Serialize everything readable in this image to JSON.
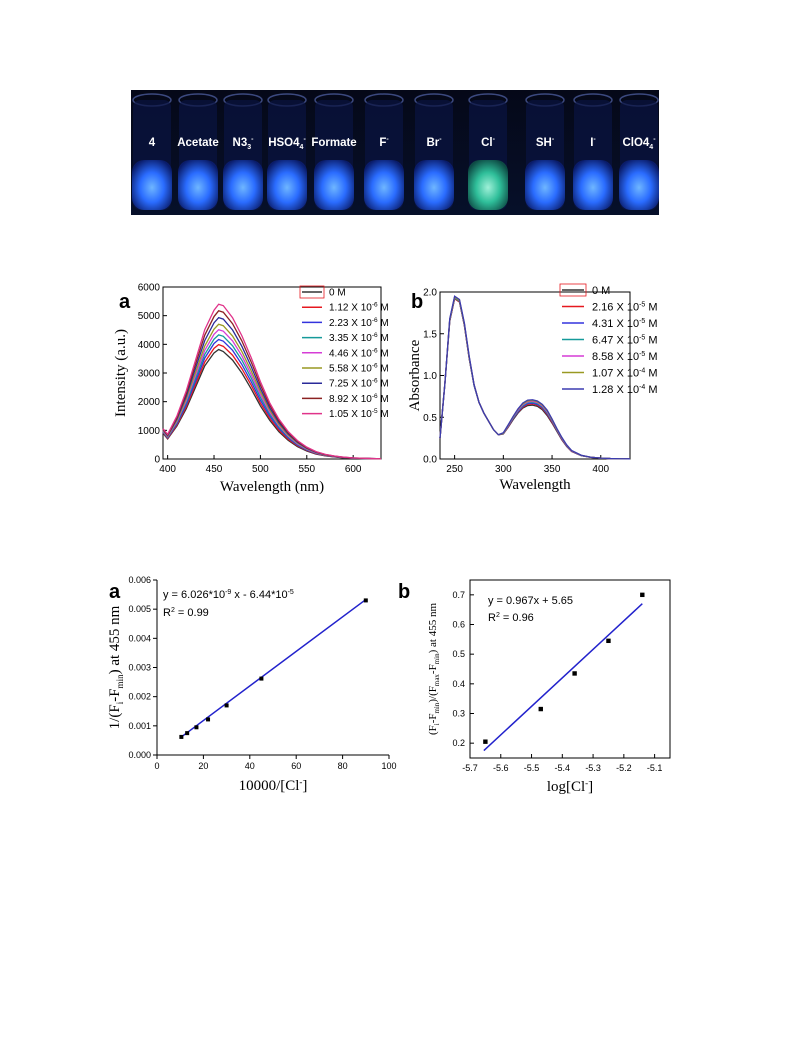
{
  "photo": {
    "labels": [
      "4",
      "Acetate",
      "N3",
      "HSO4",
      "Formate",
      "F",
      "Br",
      "Cl",
      "SH",
      "I",
      "ClO4"
    ],
    "label_sup": [
      "",
      "",
      "-",
      "-",
      "",
      "-",
      "-",
      "-",
      "-",
      "-",
      "-"
    ],
    "label_sub": [
      "",
      "",
      "3",
      "4",
      "",
      "",
      "",
      "",
      "",
      "",
      "4"
    ]
  },
  "chart_data": [
    {
      "panel_label": "a",
      "type": "line",
      "xlabel": "Wavelength (nm)",
      "ylabel": "Intensity (a.u.)",
      "xlim": [
        395,
        630
      ],
      "ylim": [
        0,
        6000
      ],
      "xticks": [
        400,
        450,
        500,
        550,
        600
      ],
      "yticks": [
        0,
        1000,
        2000,
        3000,
        4000,
        5000,
        6000
      ],
      "peak_x": 457,
      "x": [
        395,
        400,
        410,
        420,
        430,
        440,
        450,
        455,
        460,
        470,
        480,
        490,
        500,
        510,
        520,
        530,
        540,
        550,
        560,
        570,
        580,
        590,
        600,
        610,
        620,
        630
      ],
      "legend_position": "right",
      "series": [
        {
          "name": "0 M",
          "unit": "",
          "color": "#333333",
          "values": [
            900,
            700,
            1150,
            1750,
            2500,
            3250,
            3700,
            3820,
            3750,
            3450,
            3000,
            2450,
            1850,
            1350,
            950,
            650,
            430,
            280,
            170,
            110,
            70,
            40,
            25,
            15,
            10,
            5
          ]
        },
        {
          "name": "1.12 X 10",
          "unit": "-6",
          "color": "#e6181f",
          "values": [
            920,
            720,
            1190,
            1820,
            2600,
            3380,
            3860,
            3990,
            3930,
            3620,
            3150,
            2580,
            1950,
            1420,
            1000,
            690,
            460,
            300,
            185,
            115,
            75,
            45,
            28,
            18,
            12,
            6
          ]
        },
        {
          "name": "2.23 X 10",
          "unit": "-6",
          "color": "#3333dd",
          "values": [
            940,
            740,
            1230,
            1890,
            2700,
            3520,
            4030,
            4170,
            4110,
            3790,
            3300,
            2700,
            2050,
            1500,
            1060,
            730,
            485,
            315,
            195,
            122,
            80,
            48,
            30,
            19,
            12,
            6
          ]
        },
        {
          "name": "3.35 X 10",
          "unit": "-6",
          "color": "#159a9a",
          "values": [
            960,
            760,
            1270,
            1960,
            2800,
            3650,
            4180,
            4330,
            4280,
            3950,
            3450,
            2830,
            2150,
            1570,
            1110,
            765,
            510,
            330,
            205,
            128,
            84,
            50,
            32,
            20,
            13,
            7
          ]
        },
        {
          "name": "4.46 X 10",
          "unit": "-6",
          "color": "#d63cd6",
          "values": [
            980,
            780,
            1310,
            2030,
            2910,
            3790,
            4350,
            4510,
            4460,
            4120,
            3600,
            2950,
            2250,
            1640,
            1160,
            800,
            535,
            345,
            215,
            135,
            88,
            53,
            33,
            21,
            14,
            7
          ]
        },
        {
          "name": "5.58 X 10",
          "unit": "-6",
          "color": "#999922",
          "values": [
            1000,
            800,
            1350,
            2100,
            3020,
            3940,
            4530,
            4700,
            4650,
            4290,
            3750,
            3080,
            2350,
            1710,
            1210,
            835,
            560,
            360,
            225,
            141,
            92,
            55,
            35,
            22,
            14,
            7
          ]
        },
        {
          "name": "7.25 X 10",
          "unit": "-6",
          "color": "#2a2a99",
          "values": [
            1020,
            820,
            1400,
            2190,
            3160,
            4130,
            4750,
            4930,
            4880,
            4500,
            3930,
            3230,
            2460,
            1790,
            1270,
            875,
            585,
            378,
            236,
            148,
            96,
            58,
            36,
            23,
            15,
            8
          ]
        },
        {
          "name": "8.92 X 10",
          "unit": "-6",
          "color": "#8b2222",
          "values": [
            1040,
            840,
            1450,
            2280,
            3300,
            4320,
            4970,
            5170,
            5120,
            4720,
            4120,
            3390,
            2580,
            1880,
            1330,
            915,
            612,
            396,
            247,
            155,
            100,
            60,
            38,
            24,
            15,
            8
          ]
        },
        {
          "name": "1.05 X 10",
          "unit": "-5",
          "color": "#e0338a",
          "values": [
            1060,
            860,
            1500,
            2370,
            3440,
            4510,
            5190,
            5400,
            5350,
            4930,
            4300,
            3540,
            2700,
            1960,
            1390,
            955,
            640,
            414,
            258,
            162,
            104,
            63,
            40,
            25,
            16,
            8
          ]
        }
      ]
    },
    {
      "panel_label": "b",
      "type": "line",
      "xlabel": "Wavelength",
      "ylabel": "Absorbance",
      "xlim": [
        235,
        430
      ],
      "ylim": [
        0.0,
        2.0
      ],
      "xticks": [
        250,
        300,
        350,
        400
      ],
      "yticks": [
        0.0,
        0.5,
        1.0,
        1.5,
        2.0
      ],
      "x": [
        235,
        240,
        245,
        250,
        255,
        260,
        265,
        270,
        275,
        280,
        285,
        290,
        295,
        300,
        305,
        310,
        315,
        320,
        325,
        330,
        335,
        340,
        345,
        350,
        355,
        360,
        365,
        370,
        380,
        390,
        400,
        410,
        420,
        430
      ],
      "legend_position": "right",
      "series": [
        {
          "name": "0 M",
          "unit": "",
          "color": "#333333",
          "values": [
            0.25,
            0.9,
            1.65,
            1.92,
            1.88,
            1.6,
            1.2,
            0.88,
            0.68,
            0.55,
            0.45,
            0.35,
            0.29,
            0.3,
            0.38,
            0.47,
            0.55,
            0.61,
            0.64,
            0.645,
            0.63,
            0.59,
            0.52,
            0.43,
            0.33,
            0.23,
            0.15,
            0.09,
            0.04,
            0.02,
            0.01,
            0.005,
            0.003,
            0.002
          ]
        },
        {
          "name": "2.16 X 10",
          "unit": "-5",
          "color": "#e6181f",
          "values": [
            0.25,
            0.9,
            1.65,
            1.92,
            1.88,
            1.6,
            1.2,
            0.88,
            0.68,
            0.55,
            0.45,
            0.35,
            0.29,
            0.3,
            0.385,
            0.48,
            0.56,
            0.62,
            0.655,
            0.66,
            0.645,
            0.605,
            0.535,
            0.44,
            0.34,
            0.235,
            0.155,
            0.092,
            0.04,
            0.02,
            0.01,
            0.005,
            0.003,
            0.002
          ]
        },
        {
          "name": "4.31 X 10",
          "unit": "-5",
          "color": "#3333dd",
          "values": [
            0.25,
            0.9,
            1.66,
            1.93,
            1.89,
            1.61,
            1.21,
            0.88,
            0.68,
            0.55,
            0.45,
            0.35,
            0.29,
            0.305,
            0.39,
            0.485,
            0.565,
            0.63,
            0.665,
            0.67,
            0.655,
            0.615,
            0.545,
            0.45,
            0.345,
            0.24,
            0.158,
            0.094,
            0.041,
            0.02,
            0.01,
            0.005,
            0.003,
            0.002
          ]
        },
        {
          "name": "6.47 X 10",
          "unit": "-5",
          "color": "#159a9a",
          "values": [
            0.25,
            0.9,
            1.66,
            1.93,
            1.89,
            1.61,
            1.21,
            0.88,
            0.68,
            0.55,
            0.45,
            0.35,
            0.29,
            0.305,
            0.395,
            0.49,
            0.575,
            0.64,
            0.675,
            0.68,
            0.665,
            0.625,
            0.555,
            0.46,
            0.35,
            0.245,
            0.16,
            0.096,
            0.042,
            0.02,
            0.01,
            0.005,
            0.003,
            0.002
          ]
        },
        {
          "name": "8.58 X 10",
          "unit": "-5",
          "color": "#d63cd6",
          "values": [
            0.25,
            0.9,
            1.67,
            1.94,
            1.9,
            1.62,
            1.22,
            0.89,
            0.68,
            0.55,
            0.45,
            0.35,
            0.29,
            0.31,
            0.4,
            0.5,
            0.585,
            0.65,
            0.685,
            0.69,
            0.675,
            0.635,
            0.565,
            0.465,
            0.355,
            0.25,
            0.163,
            0.098,
            0.043,
            0.02,
            0.01,
            0.005,
            0.003,
            0.002
          ]
        },
        {
          "name": "1.07 X 10",
          "unit": "-4",
          "color": "#999922",
          "values": [
            0.25,
            0.9,
            1.67,
            1.94,
            1.9,
            1.62,
            1.22,
            0.89,
            0.68,
            0.55,
            0.45,
            0.35,
            0.29,
            0.31,
            0.405,
            0.505,
            0.595,
            0.66,
            0.695,
            0.7,
            0.685,
            0.645,
            0.575,
            0.47,
            0.36,
            0.255,
            0.166,
            0.1,
            0.044,
            0.021,
            0.01,
            0.005,
            0.003,
            0.002
          ]
        },
        {
          "name": "1.28 X 10",
          "unit": "-4",
          "color": "#3b3bb0",
          "values": [
            0.25,
            0.9,
            1.68,
            1.95,
            1.91,
            1.63,
            1.23,
            0.89,
            0.68,
            0.55,
            0.45,
            0.35,
            0.29,
            0.315,
            0.41,
            0.51,
            0.6,
            0.67,
            0.705,
            0.71,
            0.695,
            0.655,
            0.585,
            0.48,
            0.365,
            0.26,
            0.17,
            0.102,
            0.045,
            0.021,
            0.01,
            0.005,
            0.003,
            0.002
          ]
        }
      ]
    },
    {
      "panel_label": "a",
      "type": "scatter",
      "xlabel": "10000/[Cl",
      "xlabel_sup": "-",
      "xlabel_end": "]",
      "ylabel": "1/(F",
      "ylabel_sub1": "i",
      "ylabel_mid": "-F",
      "ylabel_sub2": "min",
      "ylabel_end": ") at 455 nm",
      "xlim": [
        0,
        100
      ],
      "ylim": [
        0.0,
        0.006
      ],
      "xticks": [
        0,
        20,
        40,
        60,
        80,
        100
      ],
      "yticks": [
        "0.000",
        "0.001",
        "0.002",
        "0.003",
        "0.004",
        "0.005",
        "0.006"
      ],
      "ytick_values": [
        0.0,
        0.001,
        0.002,
        0.003,
        0.004,
        0.005,
        0.006
      ],
      "points_x": [
        10.5,
        13,
        17,
        22,
        30,
        45,
        90
      ],
      "points_y": [
        0.00062,
        0.00075,
        0.00095,
        0.00122,
        0.0017,
        0.00262,
        0.0053
      ],
      "fit_x": [
        10,
        90
      ],
      "fit_y": [
        0.00059,
        0.00533
      ],
      "equation": "y = 6.026*10",
      "equation_sup1": "-9",
      "equation_mid": " x - 6.44*10",
      "equation_sup2": "-5",
      "r2": "R",
      "r2_sup": "2",
      "r2_val": " = 0.99",
      "line_color": "#2222cc"
    },
    {
      "panel_label": "b",
      "type": "scatter",
      "xlabel": "log[Cl",
      "xlabel_sup": "-",
      "xlabel_end": "]",
      "ylabel": "(F",
      "ylabel_s1": "i",
      "ylabel_m1": "-F",
      "ylabel_s2": "min",
      "ylabel_m2": ")/(F",
      "ylabel_s3": "max",
      "ylabel_m3": "-F",
      "ylabel_s4": "min",
      "ylabel_end": ") at 455 nm",
      "xlim": [
        -5.7,
        -5.05
      ],
      "ylim": [
        0.15,
        0.75
      ],
      "xticks": [
        "-5.7",
        "-5.6",
        "-5.5",
        "-5.4",
        "-5.3",
        "-5.2",
        "-5.1"
      ],
      "xtick_values": [
        -5.7,
        -5.6,
        -5.5,
        -5.4,
        -5.3,
        -5.2,
        -5.1
      ],
      "yticks": [
        "0.2",
        "0.3",
        "0.4",
        "0.5",
        "0.6",
        "0.7"
      ],
      "ytick_values": [
        0.2,
        0.3,
        0.4,
        0.5,
        0.6,
        0.7
      ],
      "points_x": [
        -5.65,
        -5.47,
        -5.36,
        -5.25,
        -5.14
      ],
      "points_y": [
        0.205,
        0.315,
        0.435,
        0.545,
        0.7
      ],
      "fit_x": [
        -5.655,
        -5.14
      ],
      "fit_y": [
        0.175,
        0.67
      ],
      "equation": "y = 0.967x + 5.65",
      "r2": "R",
      "r2_sup": "2",
      "r2_val": " = 0.96",
      "line_color": "#2222cc"
    }
  ]
}
